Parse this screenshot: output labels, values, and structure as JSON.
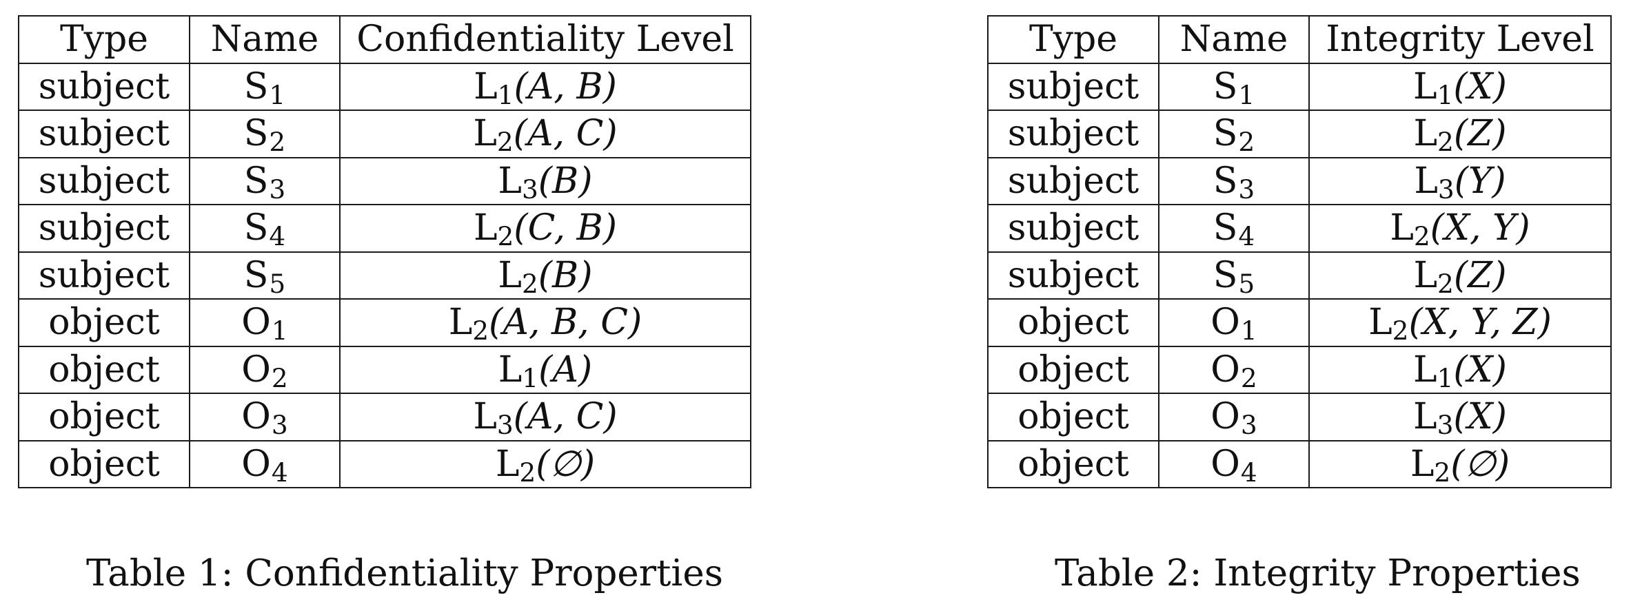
{
  "tables": [
    {
      "caption": "Table 1: Confidentiality Properties",
      "headers": [
        "Type",
        "Name",
        "Confidentiality Level"
      ],
      "rows": [
        {
          "type": "subject",
          "name_base": "S",
          "name_sub": "1",
          "level_base": "L",
          "level_sub": "1",
          "level_args": "(A, B)"
        },
        {
          "type": "subject",
          "name_base": "S",
          "name_sub": "2",
          "level_base": "L",
          "level_sub": "2",
          "level_args": "(A, C)"
        },
        {
          "type": "subject",
          "name_base": "S",
          "name_sub": "3",
          "level_base": "L",
          "level_sub": "3",
          "level_args": "(B)"
        },
        {
          "type": "subject",
          "name_base": "S",
          "name_sub": "4",
          "level_base": "L",
          "level_sub": "2",
          "level_args": "(C, B)"
        },
        {
          "type": "subject",
          "name_base": "S",
          "name_sub": "5",
          "level_base": "L",
          "level_sub": "2",
          "level_args": "(B)"
        },
        {
          "type": "object",
          "name_base": "O",
          "name_sub": "1",
          "level_base": "L",
          "level_sub": "2",
          "level_args": "(A, B, C)"
        },
        {
          "type": "object",
          "name_base": "O",
          "name_sub": "2",
          "level_base": "L",
          "level_sub": "1",
          "level_args": "(A)"
        },
        {
          "type": "object",
          "name_base": "O",
          "name_sub": "3",
          "level_base": "L",
          "level_sub": "3",
          "level_args": "(A, C)"
        },
        {
          "type": "object",
          "name_base": "O",
          "name_sub": "4",
          "level_base": "L",
          "level_sub": "2",
          "level_args": "(∅)"
        }
      ]
    },
    {
      "caption": "Table 2: Integrity Properties",
      "headers": [
        "Type",
        "Name",
        "Integrity Level"
      ],
      "rows": [
        {
          "type": "subject",
          "name_base": "S",
          "name_sub": "1",
          "level_base": "L",
          "level_sub": "1",
          "level_args": "(X)"
        },
        {
          "type": "subject",
          "name_base": "S",
          "name_sub": "2",
          "level_base": "L",
          "level_sub": "2",
          "level_args": "(Z)"
        },
        {
          "type": "subject",
          "name_base": "S",
          "name_sub": "3",
          "level_base": "L",
          "level_sub": "3",
          "level_args": "(Y)"
        },
        {
          "type": "subject",
          "name_base": "S",
          "name_sub": "4",
          "level_base": "L",
          "level_sub": "2",
          "level_args": "(X, Y)"
        },
        {
          "type": "subject",
          "name_base": "S",
          "name_sub": "5",
          "level_base": "L",
          "level_sub": "2",
          "level_args": "(Z)"
        },
        {
          "type": "object",
          "name_base": "O",
          "name_sub": "1",
          "level_base": "L",
          "level_sub": "2",
          "level_args": "(X, Y, Z)"
        },
        {
          "type": "object",
          "name_base": "O",
          "name_sub": "2",
          "level_base": "L",
          "level_sub": "1",
          "level_args": "(X)"
        },
        {
          "type": "object",
          "name_base": "O",
          "name_sub": "3",
          "level_base": "L",
          "level_sub": "3",
          "level_args": "(X)"
        },
        {
          "type": "object",
          "name_base": "O",
          "name_sub": "4",
          "level_base": "L",
          "level_sub": "2",
          "level_args": "(∅)"
        }
      ]
    }
  ]
}
